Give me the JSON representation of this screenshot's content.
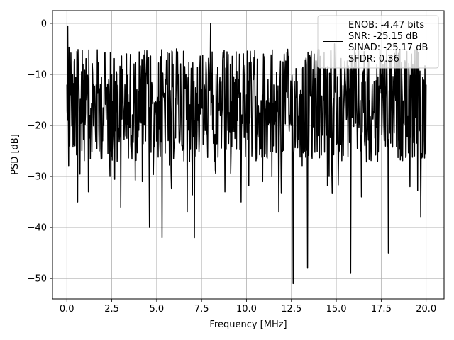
{
  "chart_data": {
    "type": "line",
    "title": "",
    "xlabel": "Frequency [MHz]",
    "ylabel": "PSD [dB]",
    "xlim": [
      -0.8,
      21.0
    ],
    "ylim": [
      -54.0,
      2.5
    ],
    "xticks": [
      0.0,
      2.5,
      5.0,
      7.5,
      10.0,
      12.5,
      15.0,
      17.5,
      20.0
    ],
    "xtick_labels": [
      "0.0",
      "2.5",
      "5.0",
      "7.5",
      "10.0",
      "12.5",
      "15.0",
      "17.5",
      "20.0"
    ],
    "yticks": [
      0,
      -10,
      -20,
      -30,
      -40,
      -50
    ],
    "ytick_labels": [
      "0",
      "−10",
      "−20",
      "−30",
      "−40",
      "−50"
    ],
    "grid": true,
    "legend_position": "top-right",
    "legend": {
      "lines": [
        "ENOB: -4.47 bits",
        "SNR: -25.15 dB",
        "SINAD: -25.17 dB",
        "SFDR: 0.36"
      ]
    },
    "series": [
      {
        "color": "#000000",
        "x_range": [
          0.0,
          20.0
        ],
        "description_of_shape": "noise-like spectrum mostly between -28 and -5 dB",
        "x": [
          0.0,
          0.05,
          0.1,
          0.2,
          0.3,
          0.45,
          0.6,
          0.9,
          1.2,
          1.5,
          1.8,
          2.1,
          2.4,
          2.5,
          2.8,
          3.0,
          3.3,
          3.6,
          3.9,
          4.2,
          4.5,
          4.6,
          4.9,
          5.2,
          5.3,
          5.5,
          5.8,
          6.1,
          6.4,
          6.7,
          6.9,
          7.1,
          7.4,
          7.7,
          8.0,
          8.2,
          8.5,
          8.8,
          9.1,
          9.4,
          9.7,
          10.0,
          10.3,
          10.6,
          10.9,
          11.2,
          11.5,
          11.8,
          12.1,
          12.4,
          12.6,
          12.8,
          13.1,
          13.4,
          13.7,
          14.0,
          14.3,
          14.6,
          14.9,
          15.2,
          15.5,
          15.8,
          16.1,
          16.4,
          16.7,
          17.0,
          17.3,
          17.6,
          17.9,
          18.2,
          18.5,
          18.8,
          19.1,
          19.4,
          19.7,
          20.0
        ],
        "y": [
          -12,
          -0.5,
          -28,
          -14,
          -20,
          -24,
          -35,
          -8,
          -33,
          -12,
          -25,
          -6,
          -30,
          -10,
          -27,
          -36,
          -9,
          -22,
          -13,
          -31,
          -7,
          -40,
          -18,
          -26,
          -42,
          -11,
          -29,
          -5,
          -24,
          -37,
          -15,
          -42,
          -9,
          -21,
          0,
          -27,
          -12,
          -33,
          -8,
          -19,
          -35,
          -14,
          -26,
          -7,
          -31,
          -11,
          -24,
          -37,
          -6,
          -18,
          -51,
          -13,
          -28,
          -48,
          -9,
          -22,
          -15,
          -30,
          -4,
          -25,
          -11,
          -49,
          -7,
          -34,
          -19,
          -12,
          -27,
          -8,
          -45,
          -16,
          -23,
          -10,
          -32,
          -14,
          -38,
          -12
        ]
      }
    ]
  }
}
